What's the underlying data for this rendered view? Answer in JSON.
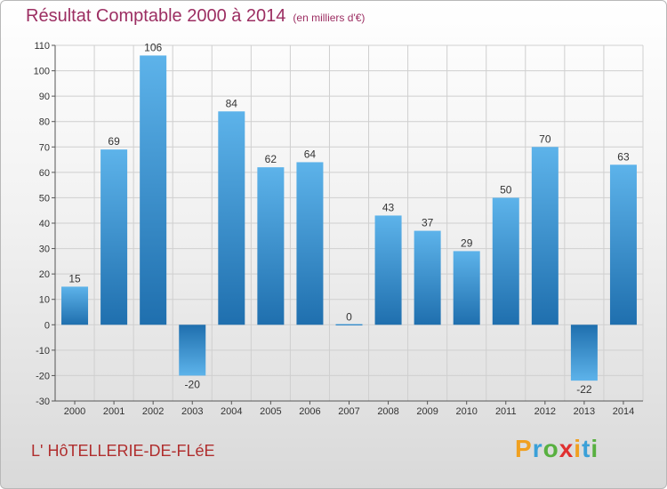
{
  "title": "Résultat Comptable 2000 à 2014",
  "subtitle": "(en milliers d'€)",
  "place": "L' HôTELLERIE-DE-FLéE",
  "logo": {
    "letters": [
      {
        "char": "P",
        "color": "#f0a020"
      },
      {
        "char": "r",
        "color": "#3aa0d8"
      },
      {
        "char": "o",
        "color": "#58b040"
      },
      {
        "char": "x",
        "color": "#e03030"
      },
      {
        "char": "i",
        "color": "#f0a020"
      },
      {
        "char": "t",
        "color": "#3aa0d8"
      },
      {
        "char": "i",
        "color": "#58b040"
      }
    ]
  },
  "colors": {
    "title": "#9c2e62",
    "place": "#b02e2e",
    "bar_light": "#5db3ea",
    "bar_dark": "#1f6fae",
    "grid": "#cfcfcf"
  },
  "chart_data": {
    "type": "bar",
    "title": "Résultat Comptable 2000 à 2014",
    "subtitle": "(en milliers d'€)",
    "categories": [
      "2000",
      "2001",
      "2002",
      "2003",
      "2004",
      "2005",
      "2006",
      "2007",
      "2008",
      "2009",
      "2010",
      "2011",
      "2012",
      "2013",
      "2014"
    ],
    "values": [
      15,
      69,
      106,
      -20,
      84,
      62,
      64,
      0,
      43,
      37,
      29,
      50,
      70,
      -22,
      63
    ],
    "ylim": [
      -30,
      110
    ],
    "yticks": [
      110,
      100,
      90,
      80,
      70,
      60,
      50,
      40,
      30,
      20,
      10,
      0,
      -10,
      -20,
      -30
    ],
    "grid": true,
    "xlabel": "",
    "ylabel": ""
  }
}
